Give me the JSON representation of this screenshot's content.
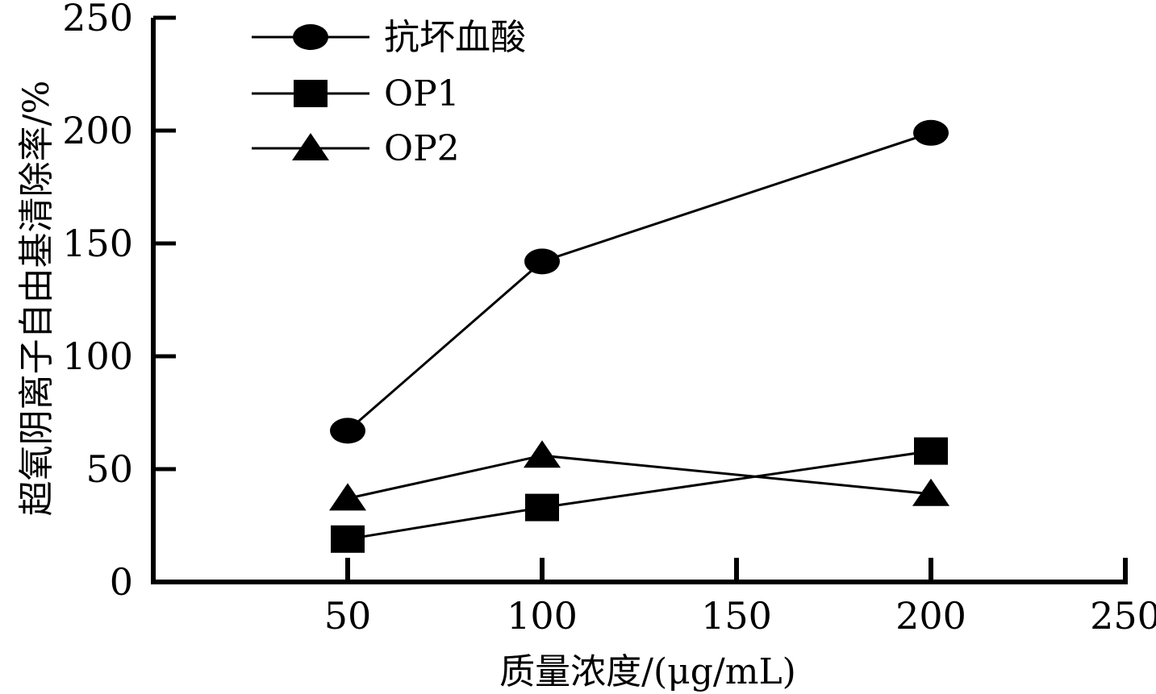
{
  "chart_data": {
    "type": "line",
    "xlabel": "质量浓度/(μg/mL)",
    "ylabel": "超氧阴离子自由基清除率/%",
    "xlim": [
      0,
      250
    ],
    "ylim": [
      0,
      250
    ],
    "x_ticks": [
      50,
      100,
      150,
      200,
      250
    ],
    "y_ticks": [
      0,
      50,
      100,
      150,
      200,
      250
    ],
    "grid": false,
    "legend_position": "top-left",
    "series": [
      {
        "name": "抗坏血酸",
        "marker": "circle",
        "color": "#000000",
        "x": [
          50,
          100,
          200
        ],
        "y": [
          67,
          142,
          199
        ]
      },
      {
        "name": "OP1",
        "marker": "square",
        "color": "#000000",
        "x": [
          50,
          100,
          200
        ],
        "y": [
          19,
          33,
          58
        ]
      },
      {
        "name": "OP2",
        "marker": "triangle",
        "color": "#000000",
        "x": [
          50,
          100,
          200
        ],
        "y": [
          37,
          56,
          39
        ]
      }
    ]
  }
}
